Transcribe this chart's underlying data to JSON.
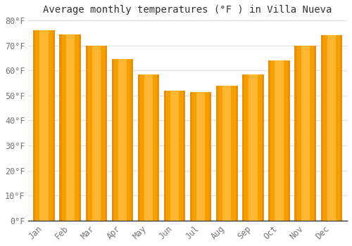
{
  "title": "Average monthly temperatures (°F ) in Villa Nueva",
  "months": [
    "Jan",
    "Feb",
    "Mar",
    "Apr",
    "May",
    "Jun",
    "Jul",
    "Aug",
    "Sep",
    "Oct",
    "Nov",
    "Dec"
  ],
  "values": [
    76,
    74.5,
    70,
    64.5,
    58.5,
    52,
    51.5,
    54,
    58.5,
    64,
    70,
    74
  ],
  "bar_color_center": "#FFB733",
  "bar_color_edge": "#F5A000",
  "bar_color_dark": "#E8900A",
  "background_color": "#FFFFFF",
  "ylim": [
    0,
    80
  ],
  "yticks": [
    0,
    10,
    20,
    30,
    40,
    50,
    60,
    70,
    80
  ],
  "ytick_labels": [
    "0°F",
    "10°F",
    "20°F",
    "30°F",
    "40°F",
    "50°F",
    "60°F",
    "70°F",
    "80°F"
  ],
  "title_fontsize": 10,
  "tick_fontsize": 8.5,
  "grid_color": "#e0e0e0",
  "axis_color": "#555555",
  "tick_color": "#777777"
}
